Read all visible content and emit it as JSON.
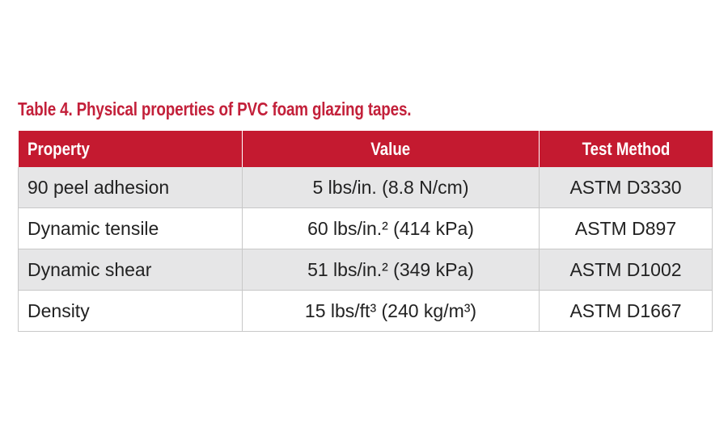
{
  "title": "Table 4. Physical properties of PVC foam glazing tapes.",
  "table": {
    "header": [
      "Property",
      "Value",
      "Test Method"
    ],
    "rows": [
      [
        "90 peel adhesion",
        "5 lbs/in. (8.8 N/cm)",
        "ASTM D3330"
      ],
      [
        "Dynamic tensile",
        "60 lbs/in.² (414 kPa)",
        "ASTM D897"
      ],
      [
        "Dynamic shear",
        "51 lbs/in.² (349 kPa)",
        "ASTM D1002"
      ],
      [
        "Density",
        "15 lbs/ft³ (240 kg/m³)",
        "ASTM D1667"
      ]
    ]
  }
}
